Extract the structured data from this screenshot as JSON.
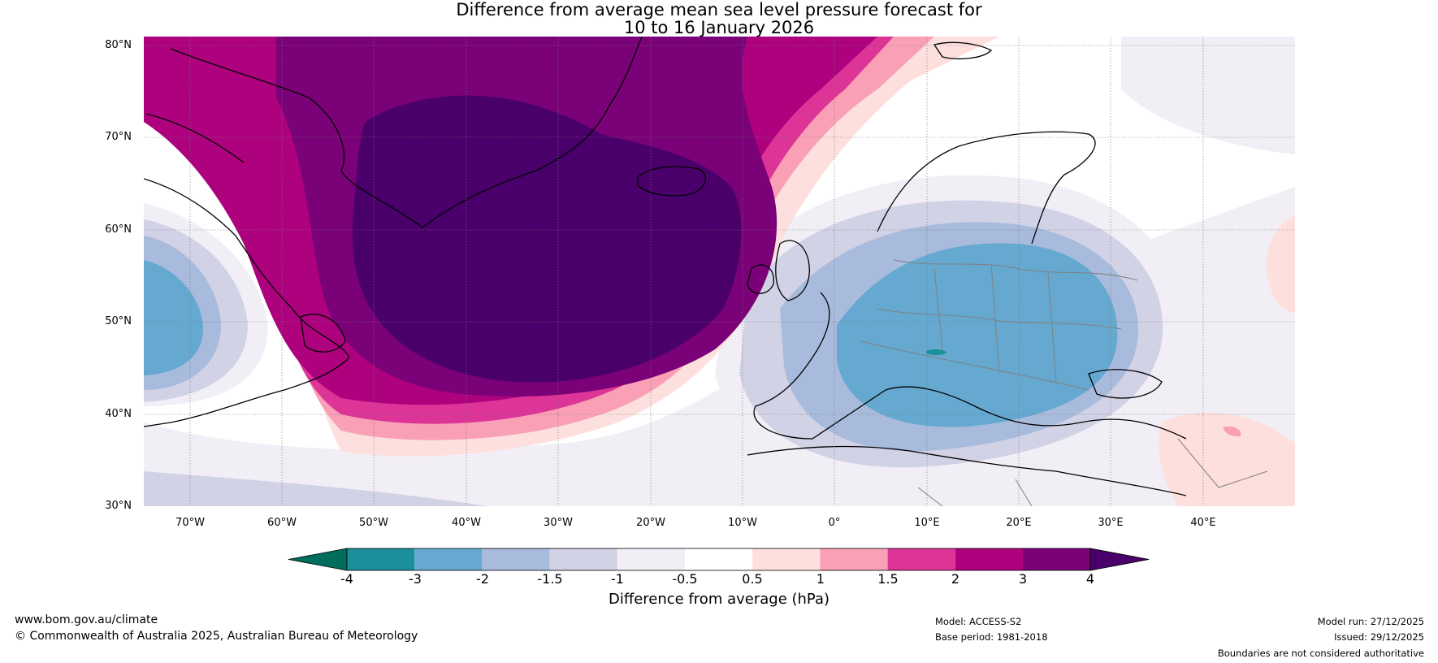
{
  "title": {
    "line1": "Difference from average mean sea level pressure forecast for",
    "line2": "10 to 16 January 2026"
  },
  "map": {
    "latitude_labels": [
      "80°N",
      "70°N",
      "60°N",
      "50°N",
      "40°N",
      "30°N"
    ],
    "longitude_labels": [
      "70°W",
      "60°W",
      "50°W",
      "40°W",
      "30°W",
      "20°W",
      "10°W",
      "0°",
      "10°E",
      "20°E",
      "30°E",
      "40°E"
    ],
    "extent": {
      "lon_min": -75,
      "lon_max": 50,
      "lat_min": 30,
      "lat_max": 81
    },
    "features": [
      "coastlines",
      "country-borders",
      "graticule",
      "pressure-anomaly-contours"
    ]
  },
  "colorbar": {
    "tick_labels": [
      "-4",
      "-3",
      "-2",
      "-1.5",
      "-1",
      "-0.5",
      "0.5",
      "1",
      "1.5",
      "2",
      "3",
      "4"
    ],
    "label": "Difference from average (hPa)",
    "colors": [
      "#006e5c",
      "#1b8f9a",
      "#65a9d0",
      "#a8bbdc",
      "#d2d2e6",
      "#f2eef6",
      "#ffffff",
      "#fde0dd",
      "#f9a0b6",
      "#dd3497",
      "#ad017e",
      "#7a0177",
      "#49006a"
    ]
  },
  "footer": {
    "website": "www.bom.gov.au/climate",
    "copyright": "© Commonwealth of Australia 2025, Australian Bureau of Meteorology",
    "model": "Model: ACCESS-S2",
    "base_period": "Base period: 1981-2018",
    "model_run": "Model run: 27/12/2025",
    "issued": "Issued: 29/12/2025",
    "boundaries": "Boundaries are not considered authoritative"
  }
}
